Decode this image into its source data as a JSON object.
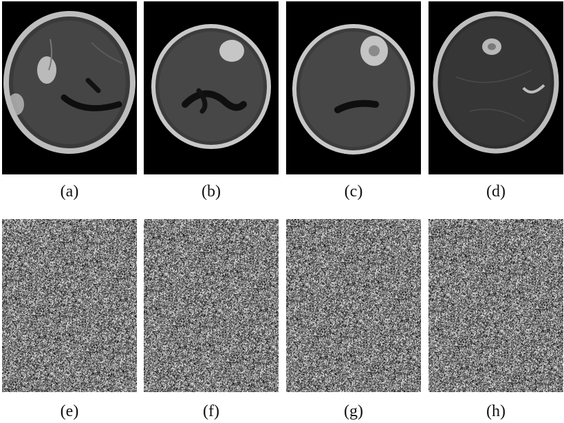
{
  "panels": [
    {
      "label": "(a)",
      "kind": "mri-slice"
    },
    {
      "label": "(b)",
      "kind": "mri-slice"
    },
    {
      "label": "(c)",
      "kind": "mri-slice"
    },
    {
      "label": "(d)",
      "kind": "mri-slice"
    },
    {
      "label": "(e)",
      "kind": "noise-image"
    },
    {
      "label": "(f)",
      "kind": "noise-image"
    },
    {
      "label": "(g)",
      "kind": "noise-image"
    },
    {
      "label": "(h)",
      "kind": "noise-image"
    }
  ],
  "colors": {
    "background": "#000000",
    "skull_ring": "#c8c8c8",
    "brain_tissue": "#3f3f3f",
    "lesion": "#cfcfcf",
    "ventricle": "#0e0e0e"
  }
}
